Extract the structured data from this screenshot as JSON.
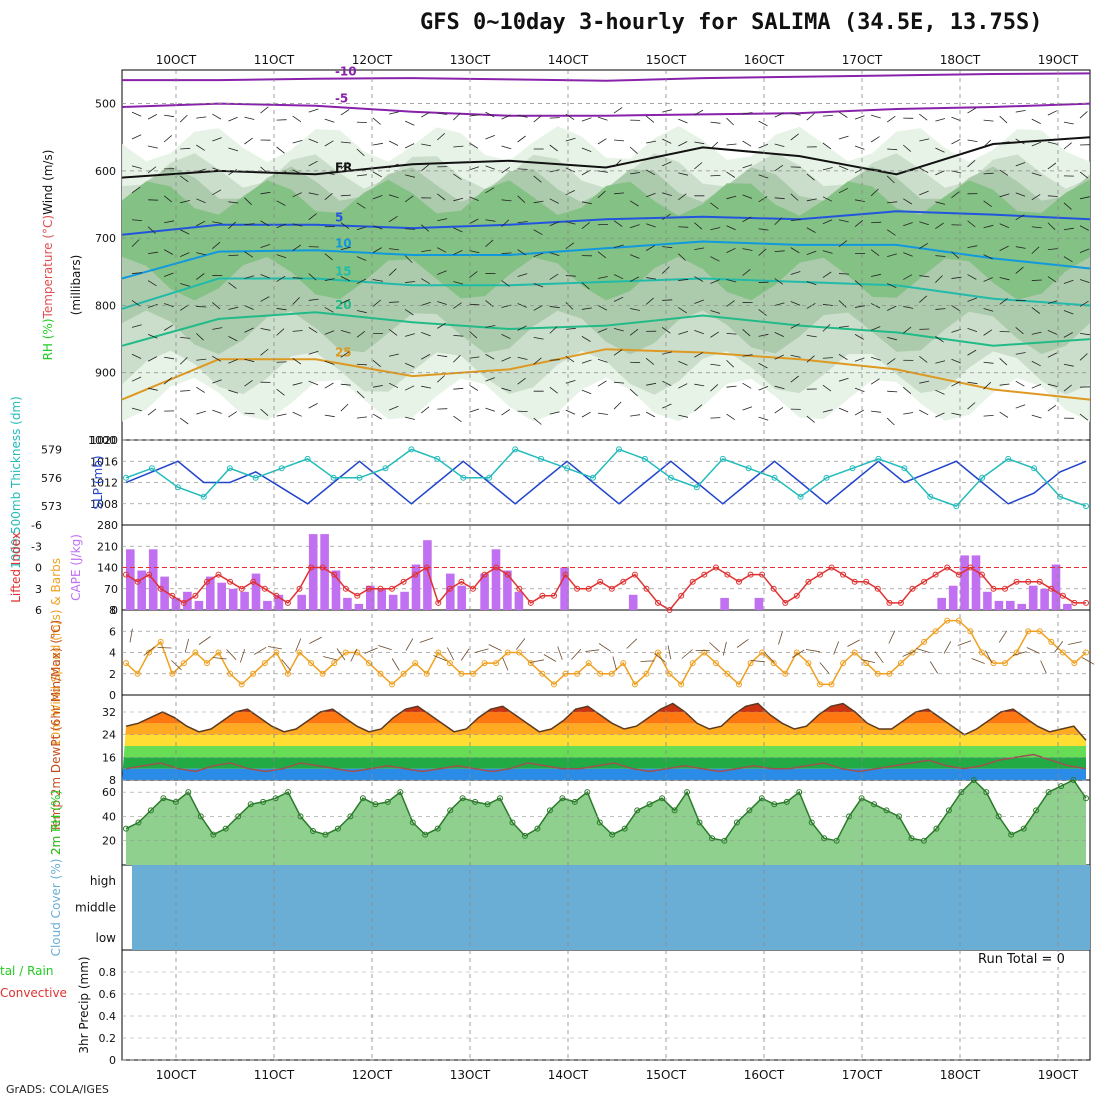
{
  "title": "GFS 0~10day 3-hourly for SALIMA (34.5E, 13.75S)",
  "credit": "GrADS: COLA/IGES",
  "run_total": "Run Total = 0",
  "colors": {
    "rh_green": "#22cc22",
    "temp_red": "#e05050",
    "wind_black": "#111111",
    "slp_blue": "#2244cc",
    "thickness_cyan": "#22bbbb",
    "cape_purple": "#c070f0",
    "lifted_red": "#e03030",
    "wind10_orange": "#f0a020",
    "cloud_blue": "#6aaed6",
    "precip_green": "#22cc22",
    "convective_red": "#e03030"
  },
  "dates": [
    "10OCT",
    "11OCT",
    "12OCT",
    "13OCT",
    "14OCT",
    "15OCT",
    "16OCT",
    "17OCT",
    "18OCT",
    "19OCT"
  ],
  "chart_data": [
    {
      "panel": "upper-air",
      "type": "heatmap",
      "ylabel_parts": [
        "RH (%)",
        "Temperature (°C)",
        "Wind (m/s)"
      ],
      "ylabel_unit": "(millibars)",
      "y_ticks": [
        "500",
        "600",
        "700",
        "800",
        "900",
        "1000"
      ],
      "ylim": [
        1000,
        450
      ],
      "isotherms": [
        {
          "label": "-10",
          "values": [
            465,
            465,
            463,
            462,
            464,
            466,
            462,
            460,
            458,
            456,
            455
          ]
        },
        {
          "label": "-5",
          "values": [
            505,
            500,
            503,
            512,
            518,
            518,
            516,
            514,
            508,
            505,
            500
          ]
        },
        {
          "label": "FR",
          "values": [
            610,
            600,
            605,
            590,
            585,
            595,
            565,
            578,
            605,
            560,
            550
          ]
        },
        {
          "label": "5",
          "values": [
            695,
            680,
            680,
            685,
            680,
            672,
            668,
            672,
            660,
            665,
            672
          ]
        },
        {
          "label": "10",
          "values": [
            760,
            720,
            718,
            725,
            725,
            715,
            705,
            710,
            710,
            730,
            745
          ]
        },
        {
          "label": "15",
          "values": [
            805,
            760,
            760,
            770,
            770,
            765,
            760,
            765,
            770,
            790,
            800
          ]
        },
        {
          "label": "20",
          "values": [
            860,
            820,
            810,
            825,
            835,
            830,
            815,
            830,
            840,
            860,
            850
          ]
        },
        {
          "label": "25",
          "values": [
            940,
            880,
            880,
            905,
            895,
            865,
            870,
            880,
            895,
            925,
            940
          ]
        }
      ]
    },
    {
      "panel": "thickness-slp",
      "type": "line",
      "ylabel_left": "1000-500mb Thickness (dm)",
      "ylabel_right": "SLP (mb)",
      "left_ticks": [
        "573",
        "576",
        "579"
      ],
      "right_ticks": [
        "1008",
        "1012",
        "1016",
        "1020"
      ],
      "series": [
        {
          "name": "SLP (mb)",
          "values": [
            1012,
            1014,
            1016,
            1012,
            1012,
            1014,
            1011,
            1008,
            1012,
            1016,
            1012,
            1008,
            1012,
            1016,
            1012,
            1008,
            1012,
            1016,
            1012,
            1008,
            1012,
            1016,
            1012,
            1008,
            1012,
            1016,
            1012,
            1008,
            1012,
            1016,
            1012,
            1014,
            1016,
            1012,
            1008,
            1010,
            1014,
            1016
          ]
        },
        {
          "name": "1000-500mb Thickness (dm)",
          "values": [
            576,
            577,
            575,
            574,
            577,
            576,
            577,
            578,
            576,
            576,
            577,
            579,
            578,
            576,
            576,
            579,
            578,
            577,
            576,
            579,
            578,
            576,
            575,
            578,
            577,
            576,
            574,
            576,
            577,
            578,
            577,
            574,
            573,
            576,
            578,
            577,
            574,
            573
          ]
        }
      ]
    },
    {
      "panel": "cape-lifted-index",
      "type": "bar",
      "ylabel_left": "Lifted Index",
      "ylabel_right": "CAPE (J/kg)",
      "left_ticks": [
        "-6",
        "-3",
        "0",
        "3",
        "6"
      ],
      "right_ticks": [
        "0",
        "70",
        "140",
        "210",
        "280"
      ],
      "series": [
        {
          "name": "CAPE (J/kg)",
          "values": [
            200,
            130,
            200,
            110,
            40,
            60,
            30,
            110,
            90,
            70,
            60,
            120,
            30,
            50,
            0,
            50,
            250,
            250,
            130,
            40,
            20,
            80,
            70,
            50,
            60,
            150,
            230,
            0,
            120,
            80,
            0,
            120,
            200,
            130,
            60,
            0,
            0,
            0,
            140,
            0,
            0,
            0,
            0,
            0,
            50,
            0,
            0,
            0,
            0,
            0,
            0,
            0,
            40,
            0,
            0,
            40,
            0,
            0,
            0,
            0,
            0,
            0,
            0,
            0,
            0,
            0,
            0,
            0,
            0,
            0,
            0,
            40,
            80,
            180,
            180,
            60,
            30,
            30,
            20,
            80,
            70,
            150,
            20,
            0
          ]
        },
        {
          "name": "Lifted Index",
          "values": [
            1,
            2,
            1,
            3,
            4,
            5,
            4,
            2,
            1,
            2,
            3,
            2,
            3,
            4,
            5,
            3,
            0,
            0,
            1,
            3,
            4,
            3,
            3,
            3,
            2,
            1,
            0,
            5,
            3,
            2,
            3,
            1,
            0,
            1,
            3,
            5,
            4,
            4,
            1,
            3,
            3,
            2,
            3,
            2,
            1,
            3,
            5,
            6,
            4,
            2,
            1,
            0,
            1,
            2,
            1,
            1,
            3,
            5,
            4,
            2,
            1,
            0,
            1,
            2,
            2,
            3,
            5,
            5,
            3,
            2,
            1,
            0,
            1,
            0,
            1,
            3,
            3,
            2,
            2,
            2,
            3,
            4,
            5,
            5
          ]
        }
      ]
    },
    {
      "panel": "wind10m",
      "type": "line",
      "ylabel": "10m Wind Speed (m/s) & Barbs",
      "y_ticks": [
        "0",
        "2",
        "4",
        "6",
        "8"
      ],
      "ylim": [
        0,
        8
      ],
      "series": [
        {
          "name": "10m Wind Speed",
          "values": [
            3,
            2,
            4,
            5,
            2,
            3,
            4,
            3,
            4,
            2,
            1,
            2,
            3,
            4,
            2,
            4,
            3,
            2,
            3,
            4,
            4,
            3,
            2,
            1,
            2,
            3,
            2,
            4,
            3,
            2,
            2,
            3,
            3,
            4,
            4,
            3,
            2,
            1,
            2,
            2,
            3,
            2,
            2,
            3,
            1,
            2,
            4,
            2,
            1,
            3,
            4,
            3,
            2,
            1,
            3,
            4,
            3,
            2,
            4,
            3,
            1,
            1,
            3,
            4,
            3,
            2,
            2,
            3,
            4,
            5,
            6,
            7,
            7,
            6,
            4,
            3,
            3,
            4,
            6,
            6,
            5,
            4,
            3,
            4
          ]
        }
      ]
    },
    {
      "panel": "temperature",
      "type": "area",
      "ylabel": "2m Temp 2m DewPt (6hr Min/Max) (°C)",
      "y_ticks": [
        "8",
        "16",
        "24",
        "32"
      ],
      "ylim": [
        8,
        38
      ],
      "series": [
        {
          "name": "2m Temp",
          "values": [
            27,
            28,
            30,
            32,
            30,
            27,
            25,
            26,
            29,
            32,
            33,
            30,
            27,
            25,
            26,
            29,
            32,
            33,
            30,
            27,
            25,
            26,
            30,
            33,
            34,
            31,
            28,
            25,
            26,
            30,
            33,
            34,
            31,
            28,
            25,
            26,
            29,
            33,
            34,
            31,
            28,
            26,
            27,
            30,
            33,
            35,
            32,
            28,
            26,
            27,
            31,
            34,
            35,
            31,
            28,
            26,
            27,
            31,
            34,
            35,
            32,
            28,
            26,
            26,
            29,
            32,
            33,
            30,
            27,
            24,
            26,
            29,
            32,
            33,
            30,
            27,
            25,
            26,
            27,
            22
          ]
        },
        {
          "name": "2m DewPt",
          "values": [
            12,
            13,
            14,
            12,
            11,
            13,
            14,
            12,
            11,
            12,
            14,
            13,
            12,
            11,
            12,
            13,
            12,
            11,
            12,
            13,
            12,
            11,
            12,
            14,
            13,
            12,
            12,
            13,
            14,
            12,
            11,
            12,
            13,
            12,
            11,
            12,
            13,
            12,
            12,
            13,
            14,
            12,
            11,
            12,
            13,
            14,
            15,
            13,
            12,
            13,
            15,
            16,
            17,
            15,
            13,
            12
          ]
        }
      ]
    },
    {
      "panel": "rh2m",
      "type": "area",
      "ylabel": "2m RH (%)",
      "y_ticks": [
        "20",
        "40",
        "60"
      ],
      "ylim": [
        0,
        70
      ],
      "series": [
        {
          "name": "2m RH",
          "values": [
            30,
            35,
            45,
            55,
            52,
            60,
            40,
            25,
            30,
            40,
            50,
            52,
            55,
            60,
            40,
            28,
            25,
            30,
            40,
            55,
            50,
            52,
            60,
            35,
            25,
            30,
            45,
            55,
            52,
            50,
            55,
            35,
            24,
            30,
            45,
            55,
            52,
            60,
            35,
            25,
            30,
            45,
            50,
            55,
            45,
            60,
            35,
            22,
            20,
            35,
            45,
            55,
            50,
            52,
            60,
            35,
            22,
            20,
            40,
            55,
            50,
            45,
            40,
            22,
            20,
            30,
            45,
            60,
            70,
            60,
            40,
            25,
            30,
            45,
            60,
            65,
            70,
            55
          ]
        }
      ]
    },
    {
      "panel": "cloud-cover",
      "type": "bar",
      "ylabel": "Cloud Cover (%)",
      "y_ticks": [
        "low",
        "middle",
        "high"
      ]
    },
    {
      "panel": "precip",
      "type": "bar",
      "ylabel": "3hr Precip (mm)",
      "legend_left": [
        "tal / Rain",
        "Convective"
      ],
      "y_ticks": [
        "0",
        "0.2",
        "0.4",
        "0.6",
        "0.8"
      ],
      "ylim": [
        0,
        1
      ]
    }
  ]
}
